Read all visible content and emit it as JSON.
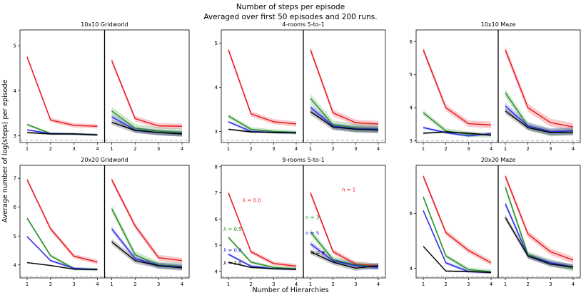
{
  "figure": {
    "title_line1": "Number of steps per episode",
    "title_line2": "Averaged over first 50 episodes and 200 runs.",
    "xlabel": "Number of Hierarchies",
    "ylabel": "Average number of log(steps) per episode"
  },
  "colors": {
    "red": "#e8141b",
    "green": "#1f8a1f",
    "blue": "#2424e6",
    "black": "#000000",
    "baseline": "#aaaaaa",
    "divider": "#000000"
  },
  "chart_data": [
    {
      "type": "line",
      "title": "10x10 Gridworld",
      "x": [
        1,
        2,
        3,
        4
      ],
      "ylim": [
        2.85,
        5.35
      ],
      "yticks": [
        3,
        4,
        5
      ],
      "ytick_labels": [
        "3",
        "4",
        "5"
      ],
      "baseline": 2.9,
      "left_panel": {
        "series": [
          {
            "color": "red",
            "values": [
              4.75,
              3.35,
              3.23,
              3.21
            ],
            "band": 0.05
          },
          {
            "color": "green",
            "values": [
              3.25,
              3.05,
              3.04,
              3.02
            ],
            "band": 0.03
          },
          {
            "color": "blue",
            "values": [
              3.13,
              3.05,
              3.04,
              3.02
            ],
            "band": 0.02
          },
          {
            "color": "black",
            "values": [
              3.07,
              3.04,
              3.04,
              3.02
            ],
            "band": 0.02
          }
        ]
      },
      "right_panel": {
        "series": [
          {
            "color": "red",
            "values": [
              4.67,
              3.38,
              3.22,
              3.21
            ],
            "band": 0.06
          },
          {
            "color": "green",
            "values": [
              3.55,
              3.17,
              3.1,
              3.07
            ],
            "band": 0.09
          },
          {
            "color": "blue",
            "values": [
              3.42,
              3.13,
              3.07,
              3.05
            ],
            "band": 0.06
          },
          {
            "color": "black",
            "values": [
              3.3,
              3.12,
              3.07,
              3.04
            ],
            "band": 0.06
          }
        ]
      }
    },
    {
      "type": "line",
      "title": "4-rooms 5-to-1",
      "x": [
        1,
        2,
        3,
        4
      ],
      "ylim": [
        2.75,
        5.3
      ],
      "yticks": [
        3,
        4,
        5
      ],
      "ytick_labels": [
        "3",
        "4",
        "5"
      ],
      "baseline": 2.8,
      "left_panel": {
        "series": [
          {
            "color": "red",
            "values": [
              4.85,
              3.4,
              3.22,
              3.17
            ],
            "band": 0.06
          },
          {
            "color": "green",
            "values": [
              3.35,
              3.05,
              3.0,
              2.98
            ],
            "band": 0.05
          },
          {
            "color": "blue",
            "values": [
              3.22,
              3.0,
              2.98,
              2.97
            ],
            "band": 0.03
          },
          {
            "color": "black",
            "values": [
              3.05,
              2.99,
              2.98,
              2.97
            ],
            "band": 0.02
          }
        ]
      },
      "right_panel": {
        "series": [
          {
            "color": "red",
            "values": [
              4.85,
              3.42,
              3.2,
              3.17
            ],
            "band": 0.07
          },
          {
            "color": "green",
            "values": [
              3.75,
              3.15,
              3.08,
              3.06
            ],
            "band": 0.1
          },
          {
            "color": "blue",
            "values": [
              3.55,
              3.12,
              3.06,
              3.05
            ],
            "band": 0.07
          },
          {
            "color": "black",
            "values": [
              3.45,
              3.1,
              3.05,
              3.03
            ],
            "band": 0.07
          }
        ]
      }
    },
    {
      "type": "line",
      "title": "10x10 Maze",
      "x": [
        1,
        2,
        3,
        4
      ],
      "ylim": [
        2.95,
        6.35
      ],
      "yticks": [
        3,
        4,
        5,
        6
      ],
      "ytick_labels": [
        "3",
        "4",
        "5",
        "6"
      ],
      "baseline": 3.0,
      "left_panel": {
        "series": [
          {
            "color": "red",
            "values": [
              5.75,
              4.0,
              3.52,
              3.48
            ],
            "band": 0.1
          },
          {
            "color": "green",
            "values": [
              3.85,
              3.3,
              3.2,
              3.18
            ],
            "band": 0.08
          },
          {
            "color": "blue",
            "values": [
              3.4,
              3.25,
              3.15,
              3.22
            ],
            "band": 0.04
          },
          {
            "color": "black",
            "values": [
              3.23,
              3.27,
              3.23,
              3.17
            ],
            "band": 0.03
          }
        ]
      },
      "right_panel": {
        "series": [
          {
            "color": "red",
            "values": [
              5.75,
              4.0,
              3.55,
              3.42
            ],
            "band": 0.12
          },
          {
            "color": "green",
            "values": [
              4.45,
              3.45,
              3.25,
              3.3
            ],
            "band": 0.12
          },
          {
            "color": "blue",
            "values": [
              4.05,
              3.45,
              3.28,
              3.3
            ],
            "band": 0.1
          },
          {
            "color": "black",
            "values": [
              3.9,
              3.4,
              3.25,
              3.25
            ],
            "band": 0.09
          }
        ]
      }
    },
    {
      "type": "line",
      "title": "20x20 Gridworld",
      "x": [
        1,
        2,
        3,
        4
      ],
      "ylim": [
        3.55,
        7.45
      ],
      "yticks": [
        4,
        5,
        6,
        7
      ],
      "ytick_labels": [
        "4",
        "5",
        "6",
        "7"
      ],
      "baseline": 3.6,
      "left_panel": {
        "series": [
          {
            "color": "red",
            "values": [
              6.95,
              5.25,
              4.3,
              4.1
            ],
            "band": 0.08
          },
          {
            "color": "green",
            "values": [
              5.62,
              4.32,
              3.87,
              3.84
            ],
            "band": 0.06
          },
          {
            "color": "blue",
            "values": [
              4.98,
              4.15,
              3.88,
              3.84
            ],
            "band": 0.04
          },
          {
            "color": "black",
            "values": [
              4.08,
              3.98,
              3.85,
              3.84
            ],
            "band": 0.02
          }
        ]
      },
      "right_panel": {
        "series": [
          {
            "color": "red",
            "values": [
              6.95,
              5.35,
              4.25,
              4.15
            ],
            "band": 0.1
          },
          {
            "color": "green",
            "values": [
              5.95,
              4.35,
              4.0,
              3.95
            ],
            "band": 0.12
          },
          {
            "color": "blue",
            "values": [
              5.25,
              4.22,
              3.98,
              3.93
            ],
            "band": 0.1
          },
          {
            "color": "black",
            "values": [
              4.8,
              4.15,
              3.97,
              3.9
            ],
            "band": 0.1
          }
        ]
      }
    },
    {
      "type": "line",
      "title": "9-rooms 5-to-1",
      "x": [
        1,
        2,
        3,
        4
      ],
      "ylim": [
        3.75,
        8.05
      ],
      "yticks": [
        4,
        5,
        6,
        7,
        8
      ],
      "ytick_labels": [
        "4",
        "5",
        "6",
        "7",
        "8"
      ],
      "baseline": 3.8,
      "left_panel": {
        "series": [
          {
            "color": "red",
            "values": [
              7.0,
              4.75,
              4.3,
              4.2
            ],
            "band": 0.08
          },
          {
            "color": "green",
            "values": [
              5.3,
              4.35,
              4.15,
              4.1
            ],
            "band": 0.06
          },
          {
            "color": "blue",
            "values": [
              4.65,
              4.2,
              4.1,
              4.08
            ],
            "band": 0.05
          },
          {
            "color": "black",
            "values": [
              4.35,
              4.15,
              4.1,
              4.08
            ],
            "band": 0.03
          }
        ]
      },
      "right_panel": {
        "series": [
          {
            "color": "red",
            "values": [
              7.0,
              4.75,
              4.28,
              4.2
            ],
            "band": 0.1
          },
          {
            "color": "green",
            "values": [
              5.5,
              4.45,
              4.25,
              4.18
            ],
            "band": 0.12
          },
          {
            "color": "blue",
            "values": [
              5.05,
              4.4,
              4.22,
              4.15
            ],
            "band": 0.1
          },
          {
            "color": "black",
            "values": [
              4.75,
              4.35,
              4.12,
              4.22
            ],
            "band": 0.1
          }
        ]
      },
      "annotations": {
        "left": [
          "λ = 0.0",
          "λ = 0.5",
          "λ = 0.8",
          "λ = 1.0"
        ],
        "right": [
          "n = 1",
          "n = 3",
          "n = 5",
          "n = 8"
        ]
      }
    },
    {
      "type": "line",
      "title": "20x20 Maze",
      "x": [
        1,
        2,
        3,
        4
      ],
      "ylim": [
        3.65,
        7.75
      ],
      "yticks": [
        4,
        6
      ],
      "ytick_labels": [
        "4",
        "6"
      ],
      "baseline": 3.7,
      "left_panel": {
        "series": [
          {
            "color": "red",
            "values": [
              7.35,
              5.3,
              4.65,
              4.2
            ],
            "band": 0.1
          },
          {
            "color": "green",
            "values": [
              6.6,
              4.45,
              3.95,
              3.88
            ],
            "band": 0.08
          },
          {
            "color": "blue",
            "values": [
              6.1,
              4.2,
              3.88,
              3.85
            ],
            "band": 0.06
          },
          {
            "color": "black",
            "values": [
              4.8,
              3.9,
              3.88,
              3.85
            ],
            "band": 0.03
          }
        ]
      },
      "right_panel": {
        "series": [
          {
            "color": "red",
            "values": [
              7.35,
              5.25,
              4.6,
              4.3
            ],
            "band": 0.12
          },
          {
            "color": "green",
            "values": [
              6.95,
              4.5,
              4.2,
              4.0
            ],
            "band": 0.12
          },
          {
            "color": "blue",
            "values": [
              6.35,
              4.45,
              4.2,
              4.05
            ],
            "band": 0.1
          },
          {
            "color": "black",
            "values": [
              5.85,
              4.45,
              4.15,
              4.05
            ],
            "band": 0.1
          }
        ]
      }
    }
  ]
}
